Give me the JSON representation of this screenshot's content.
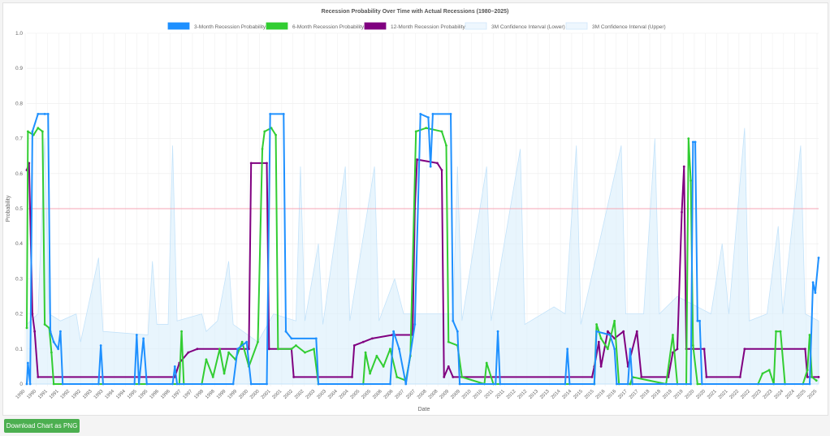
{
  "chart_data": {
    "type": "line",
    "title": "Recession Probability Over Time with Actual Recessions (1980–2025)",
    "xlabel": "Date",
    "ylabel": "Probability",
    "ylim": [
      0,
      1
    ],
    "xlim": [
      1990,
      2025.3
    ],
    "yticks": [
      "0",
      "0.1",
      "0.2",
      "0.3",
      "0.4",
      "0.5",
      "0.6",
      "0.7",
      "0.8",
      "0.9",
      "1.0"
    ],
    "xticks": [
      "1990",
      "1990",
      "1991",
      "1991",
      "1992",
      "1992",
      "1993",
      "1993",
      "1994",
      "1994",
      "1995",
      "1995",
      "1996",
      "1996",
      "1997",
      "1997",
      "1998",
      "1998",
      "1999",
      "1999",
      "2000",
      "2000",
      "2001",
      "2001",
      "2002",
      "2002",
      "2003",
      "2003",
      "2004",
      "2004",
      "2005",
      "2005",
      "2006",
      "2006",
      "2007",
      "2007",
      "2008",
      "2008",
      "2009",
      "2009",
      "2010",
      "2010",
      "2011",
      "2011",
      "2012",
      "2012",
      "2013",
      "2013",
      "2014",
      "2014",
      "2015",
      "2015",
      "2016",
      "2016",
      "2017",
      "2017",
      "2018",
      "2018",
      "2019",
      "2019",
      "2020",
      "2020",
      "2021",
      "2021",
      "2022",
      "2022",
      "2023",
      "2023",
      "2024",
      "2024",
      "2025",
      "2025"
    ],
    "threshold": 0.5,
    "threshold_color": "#f4a6b4",
    "grid": true,
    "legend_position": "top",
    "series": [
      {
        "name": "3-Month Recession Probability",
        "color": "#1e90ff",
        "points": [
          [
            1990,
            0
          ],
          [
            1990.05,
            0.06
          ],
          [
            1990.15,
            0
          ],
          [
            1990.25,
            0.72
          ],
          [
            1990.5,
            0.77
          ],
          [
            1990.8,
            0.77
          ],
          [
            1990.95,
            0.77
          ],
          [
            1991.05,
            0.15
          ],
          [
            1991.2,
            0.12
          ],
          [
            1991.4,
            0.1
          ],
          [
            1991.5,
            0.15
          ],
          [
            1991.6,
            0
          ],
          [
            1993.2,
            0
          ],
          [
            1993.3,
            0.11
          ],
          [
            1993.4,
            0
          ],
          [
            1994.8,
            0
          ],
          [
            1994.9,
            0.14
          ],
          [
            1995.0,
            0
          ],
          [
            1995.2,
            0.13
          ],
          [
            1995.35,
            0
          ],
          [
            1996.5,
            0
          ],
          [
            1996.6,
            0.05
          ],
          [
            1996.7,
            0
          ],
          [
            1999.2,
            0
          ],
          [
            1999.4,
            0.1
          ],
          [
            1999.8,
            0.12
          ],
          [
            2000.0,
            0
          ],
          [
            2000.7,
            0
          ],
          [
            2000.85,
            0.77
          ],
          [
            2001.45,
            0.77
          ],
          [
            2001.55,
            0.15
          ],
          [
            2001.8,
            0.13
          ],
          [
            2002.9,
            0.13
          ],
          [
            2003.0,
            0
          ],
          [
            2006.2,
            0
          ],
          [
            2006.35,
            0.15
          ],
          [
            2006.6,
            0.1
          ],
          [
            2006.9,
            0
          ],
          [
            2007.3,
            0.17
          ],
          [
            2007.55,
            0.77
          ],
          [
            2007.9,
            0.76
          ],
          [
            2008.0,
            0.62
          ],
          [
            2008.1,
            0.77
          ],
          [
            2008.9,
            0.77
          ],
          [
            2009.0,
            0.18
          ],
          [
            2009.2,
            0.15
          ],
          [
            2009.3,
            0
          ],
          [
            2010.9,
            0
          ],
          [
            2011.0,
            0.15
          ],
          [
            2011.1,
            0
          ],
          [
            2014.0,
            0
          ],
          [
            2014.1,
            0.1
          ],
          [
            2014.2,
            0
          ],
          [
            2015.3,
            0
          ],
          [
            2015.4,
            0.15
          ],
          [
            2016.0,
            0.14
          ],
          [
            2016.2,
            0.1
          ],
          [
            2016.3,
            0
          ],
          [
            2016.8,
            0
          ],
          [
            2016.9,
            0.1
          ],
          [
            2017.0,
            0
          ],
          [
            2019.6,
            0
          ],
          [
            2019.7,
            0.69
          ],
          [
            2019.8,
            0.69
          ],
          [
            2019.9,
            0.18
          ],
          [
            2020.0,
            0.18
          ],
          [
            2020.1,
            0
          ],
          [
            2024.9,
            0
          ],
          [
            2025.05,
            0.29
          ],
          [
            2025.15,
            0.26
          ],
          [
            2025.3,
            0.36
          ]
        ]
      },
      {
        "name": "6-Month Recession Probability",
        "color": "#32cd32",
        "points": [
          [
            1990,
            0.16
          ],
          [
            1990.05,
            0.72
          ],
          [
            1990.3,
            0.71
          ],
          [
            1990.5,
            0.73
          ],
          [
            1990.7,
            0.72
          ],
          [
            1990.8,
            0.17
          ],
          [
            1991.0,
            0.16
          ],
          [
            1991.1,
            0.09
          ],
          [
            1991.2,
            0
          ],
          [
            1996.8,
            0
          ],
          [
            1996.9,
            0.15
          ],
          [
            1997.0,
            0
          ],
          [
            1997.8,
            0
          ],
          [
            1998.0,
            0.07
          ],
          [
            1998.3,
            0.02
          ],
          [
            1998.6,
            0.1
          ],
          [
            1998.8,
            0.03
          ],
          [
            1999.0,
            0.09
          ],
          [
            1999.3,
            0.07
          ],
          [
            1999.6,
            0.12
          ],
          [
            1999.9,
            0.05
          ],
          [
            2000.3,
            0.12
          ],
          [
            2000.5,
            0.67
          ],
          [
            2000.6,
            0.72
          ],
          [
            2000.9,
            0.73
          ],
          [
            2001.1,
            0.71
          ],
          [
            2001.2,
            0.1
          ],
          [
            2001.8,
            0.1
          ],
          [
            2002.0,
            0.11
          ],
          [
            2002.4,
            0.09
          ],
          [
            2002.8,
            0.1
          ],
          [
            2003.0,
            0
          ],
          [
            2005.0,
            0
          ],
          [
            2005.1,
            0.09
          ],
          [
            2005.3,
            0.03
          ],
          [
            2005.6,
            0.08
          ],
          [
            2005.9,
            0.05
          ],
          [
            2006.2,
            0.1
          ],
          [
            2006.5,
            0.02
          ],
          [
            2006.9,
            0.01
          ],
          [
            2007.1,
            0.08
          ],
          [
            2007.35,
            0.72
          ],
          [
            2007.8,
            0.73
          ],
          [
            2008.5,
            0.72
          ],
          [
            2008.7,
            0.68
          ],
          [
            2008.8,
            0.12
          ],
          [
            2009.2,
            0.11
          ],
          [
            2009.4,
            0.02
          ],
          [
            2010.4,
            0
          ],
          [
            2010.5,
            0.06
          ],
          [
            2010.8,
            0
          ],
          [
            2015.3,
            0
          ],
          [
            2015.4,
            0.17
          ],
          [
            2015.6,
            0.13
          ],
          [
            2015.9,
            0.1
          ],
          [
            2016.2,
            0.18
          ],
          [
            2016.4,
            0
          ],
          [
            2016.9,
            0
          ],
          [
            2017.0,
            0.02
          ],
          [
            2018.5,
            0
          ],
          [
            2018.8,
            0.14
          ],
          [
            2019.0,
            0
          ],
          [
            2019.4,
            0
          ],
          [
            2019.5,
            0.7
          ],
          [
            2019.6,
            0.58
          ],
          [
            2019.7,
            0.11
          ],
          [
            2019.9,
            0
          ],
          [
            2022.6,
            0
          ],
          [
            2022.8,
            0.03
          ],
          [
            2023.1,
            0.04
          ],
          [
            2023.3,
            0
          ],
          [
            2023.4,
            0.15
          ],
          [
            2023.6,
            0.15
          ],
          [
            2023.8,
            0
          ],
          [
            2024.6,
            0
          ],
          [
            2024.8,
            0.04
          ],
          [
            2024.9,
            0.14
          ],
          [
            2025.0,
            0.02
          ],
          [
            2025.2,
            0.01
          ]
        ]
      },
      {
        "name": "12-Month Recession Probability",
        "color": "#800080",
        "points": [
          [
            1990,
            0.61
          ],
          [
            1990.1,
            0.63
          ],
          [
            1990.25,
            0.2
          ],
          [
            1990.35,
            0.15
          ],
          [
            1990.5,
            0.02
          ],
          [
            1996.6,
            0.02
          ],
          [
            1996.8,
            0.06
          ],
          [
            1997.2,
            0.09
          ],
          [
            1997.6,
            0.1
          ],
          [
            1999.9,
            0.1
          ],
          [
            2000.0,
            0.63
          ],
          [
            2000.7,
            0.63
          ],
          [
            2000.8,
            0.1
          ],
          [
            2001.8,
            0.1
          ],
          [
            2001.9,
            0.02
          ],
          [
            2004.5,
            0.02
          ],
          [
            2004.6,
            0.11
          ],
          [
            2005.0,
            0.12
          ],
          [
            2005.4,
            0.13
          ],
          [
            2006.3,
            0.14
          ],
          [
            2007.2,
            0.14
          ],
          [
            2007.3,
            0.5
          ],
          [
            2007.4,
            0.64
          ],
          [
            2008.3,
            0.63
          ],
          [
            2008.5,
            0.61
          ],
          [
            2008.6,
            0.02
          ],
          [
            2008.8,
            0.05
          ],
          [
            2009.0,
            0.02
          ],
          [
            2015.2,
            0.02
          ],
          [
            2015.3,
            0.05
          ],
          [
            2015.5,
            0.12
          ],
          [
            2015.6,
            0.05
          ],
          [
            2015.9,
            0.15
          ],
          [
            2016.2,
            0.13
          ],
          [
            2016.6,
            0.15
          ],
          [
            2016.8,
            0.05
          ],
          [
            2017.2,
            0.15
          ],
          [
            2017.4,
            0.02
          ],
          [
            2018.6,
            0.02
          ],
          [
            2018.8,
            0.09
          ],
          [
            2019.0,
            0.1
          ],
          [
            2019.2,
            0.49
          ],
          [
            2019.3,
            0.62
          ],
          [
            2019.4,
            0.1
          ],
          [
            2020.2,
            0.1
          ],
          [
            2020.3,
            0.02
          ],
          [
            2021.8,
            0.02
          ],
          [
            2022.0,
            0.1
          ],
          [
            2024.7,
            0.1
          ],
          [
            2024.8,
            0.02
          ],
          [
            2025.3,
            0.02
          ]
        ]
      },
      {
        "name": "3M Confidence Interval (Lower)",
        "color": "#e8f4fd",
        "points": [
          [
            1990,
            0
          ],
          [
            2025.3,
            0
          ]
        ]
      },
      {
        "name": "3M Confidence Interval (Upper)",
        "color": "#e3f2fd",
        "points": [
          [
            1990,
            0.17
          ],
          [
            1990.5,
            0.2
          ],
          [
            1990.8,
            0.7
          ],
          [
            1991.0,
            0.2
          ],
          [
            1991.5,
            0.18
          ],
          [
            1992.2,
            0.2
          ],
          [
            1992.4,
            0.12
          ],
          [
            1993.2,
            0.36
          ],
          [
            1993.4,
            0.15
          ],
          [
            1995.4,
            0.14
          ],
          [
            1995.6,
            0.35
          ],
          [
            1995.8,
            0.17
          ],
          [
            1996.3,
            0.17
          ],
          [
            1996.5,
            0.68
          ],
          [
            1996.7,
            0.18
          ],
          [
            1997.8,
            0.2
          ],
          [
            1998.0,
            0.15
          ],
          [
            1998.5,
            0.18
          ],
          [
            1999.0,
            0.35
          ],
          [
            1999.2,
            0.17
          ],
          [
            2000.3,
            0.12
          ],
          [
            2001.0,
            0.2
          ],
          [
            2002.0,
            0.18
          ],
          [
            2002.2,
            0.62
          ],
          [
            2002.4,
            0.18
          ],
          [
            2003.0,
            0.4
          ],
          [
            2003.2,
            0.17
          ],
          [
            2004.2,
            0.62
          ],
          [
            2004.4,
            0.18
          ],
          [
            2005.5,
            0.62
          ],
          [
            2005.7,
            0.18
          ],
          [
            2006.4,
            0.3
          ],
          [
            2006.8,
            0.2
          ],
          [
            2009.0,
            0.2
          ],
          [
            2009.2,
            0.62
          ],
          [
            2009.4,
            0.18
          ],
          [
            2010.5,
            0.62
          ],
          [
            2010.7,
            0.18
          ],
          [
            2012.0,
            0.67
          ],
          [
            2012.2,
            0.17
          ],
          [
            2013.5,
            0.22
          ],
          [
            2014.0,
            0.2
          ],
          [
            2014.5,
            0.68
          ],
          [
            2014.7,
            0.17
          ],
          [
            2016.5,
            0.68
          ],
          [
            2016.7,
            0.2
          ],
          [
            2017.5,
            0.2
          ],
          [
            2018.0,
            0.7
          ],
          [
            2018.2,
            0.2
          ],
          [
            2019.0,
            0.25
          ],
          [
            2020.5,
            0.2
          ],
          [
            2021.0,
            0.4
          ],
          [
            2021.3,
            0.2
          ],
          [
            2022.0,
            0.73
          ],
          [
            2022.2,
            0.18
          ],
          [
            2023.0,
            0.2
          ],
          [
            2023.5,
            0.45
          ],
          [
            2023.7,
            0.2
          ],
          [
            2024.5,
            0.68
          ],
          [
            2024.7,
            0.2
          ],
          [
            2025.3,
            0.18
          ]
        ]
      }
    ]
  },
  "download_button": "Download Chart as PNG"
}
